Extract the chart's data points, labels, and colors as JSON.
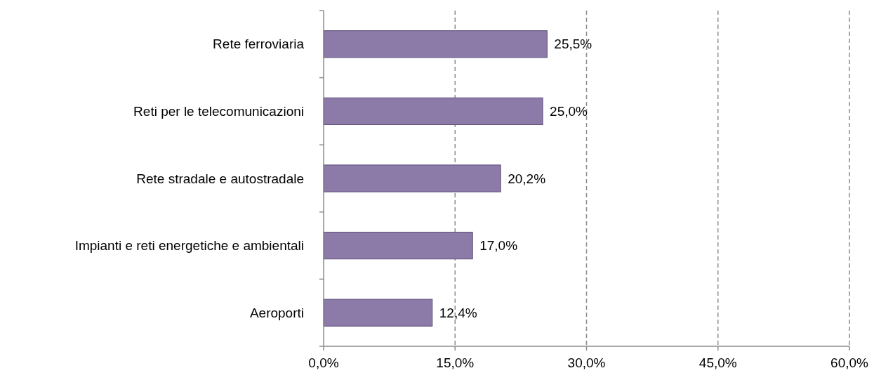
{
  "chart_data": {
    "type": "bar",
    "orientation": "horizontal",
    "categories": [
      "Rete ferroviaria",
      "Reti per le telecomunicazioni",
      "Rete stradale e autostradale",
      "Impianti e reti energetiche e ambientali",
      "Aeroporti"
    ],
    "values": [
      25.5,
      25.0,
      20.2,
      17.0,
      12.4
    ],
    "value_labels": [
      "25,5%",
      "25,0%",
      "20,2%",
      "17,0%",
      "12,4%"
    ],
    "color": "#8c7aa8",
    "xlim": [
      0,
      60
    ],
    "xticks": [
      {
        "value": 0,
        "label": "0,0%"
      },
      {
        "value": 15,
        "label": "15,0%"
      },
      {
        "value": 30,
        "label": "30,0%"
      },
      {
        "value": 45,
        "label": "45,0%"
      },
      {
        "value": 60,
        "label": "60,0%"
      }
    ],
    "grid": "x"
  }
}
